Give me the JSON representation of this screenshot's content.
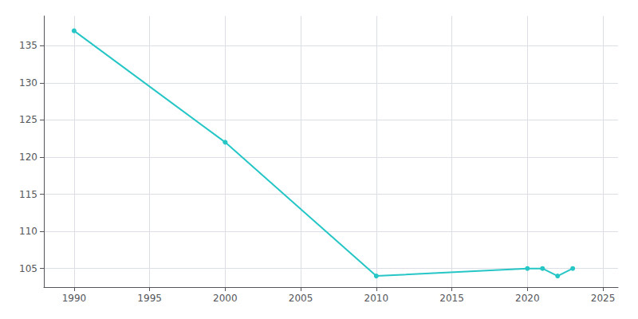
{
  "chart_data": {
    "type": "line",
    "x": [
      1990,
      2000,
      2010,
      2020,
      2021,
      2022,
      2023
    ],
    "values": [
      137,
      122,
      104,
      105,
      105,
      104,
      105
    ],
    "color": "#26c6c6",
    "marker": "circle",
    "xlim": [
      1988,
      2026
    ],
    "xticks": [
      1990,
      1995,
      2000,
      2005,
      2010,
      2015,
      2020,
      2025
    ],
    "ylim": [
      102.5,
      139
    ],
    "yticks": [
      105,
      110,
      115,
      120,
      125,
      130,
      135
    ],
    "grid": true
  }
}
